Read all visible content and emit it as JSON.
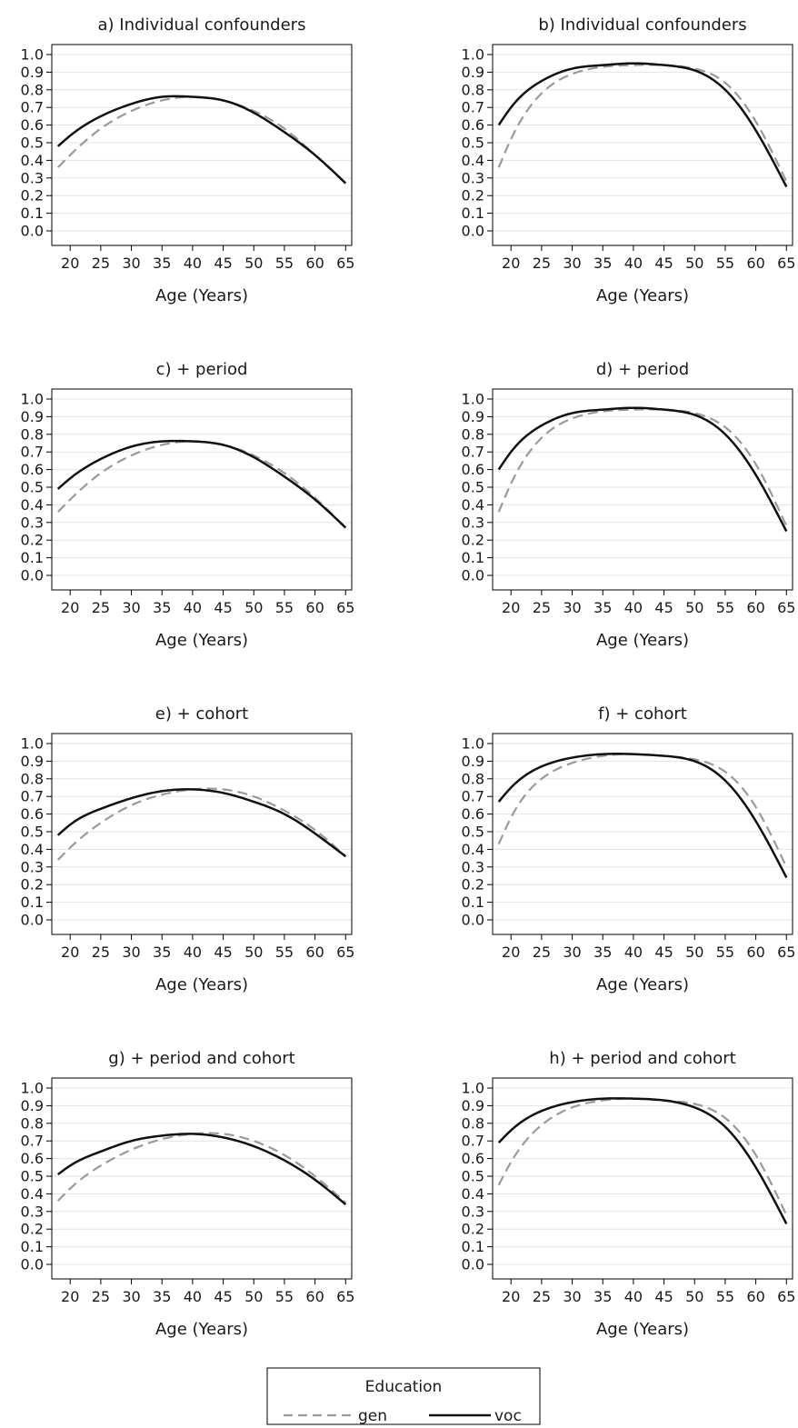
{
  "chart_data": [
    {
      "type": "line",
      "title": "a) Individual confounders",
      "xlabel": "Age (Years)",
      "ylabel": "",
      "xlim": [
        17,
        66
      ],
      "ylim": [
        0.0,
        1.0
      ],
      "xticks": [
        "20",
        "25",
        "30",
        "35",
        "40",
        "45",
        "50",
        "55",
        "60",
        "65"
      ],
      "yticks": [
        "0.0",
        "0.1",
        "0.2",
        "0.3",
        "0.4",
        "0.5",
        "0.6",
        "0.7",
        "0.8",
        "0.9",
        "1.0"
      ],
      "grid": true,
      "x": [
        18,
        20,
        25,
        30,
        35,
        40,
        45,
        50,
        55,
        60,
        65
      ],
      "series": [
        {
          "name": "gen",
          "values": [
            0.36,
            0.43,
            0.58,
            0.68,
            0.74,
            0.76,
            0.74,
            0.68,
            0.58,
            0.43,
            0.27
          ]
        },
        {
          "name": "voc",
          "values": [
            0.48,
            0.54,
            0.65,
            0.72,
            0.76,
            0.76,
            0.74,
            0.67,
            0.56,
            0.43,
            0.27
          ]
        }
      ]
    },
    {
      "type": "line",
      "title": "b) Individual confounders",
      "xlabel": "Age (Years)",
      "ylabel": "",
      "xlim": [
        17,
        66
      ],
      "ylim": [
        0.0,
        1.0
      ],
      "xticks": [
        "20",
        "25",
        "30",
        "35",
        "40",
        "45",
        "50",
        "55",
        "60",
        "65"
      ],
      "yticks": [
        "0.0",
        "0.1",
        "0.2",
        "0.3",
        "0.4",
        "0.5",
        "0.6",
        "0.7",
        "0.8",
        "0.9",
        "1.0"
      ],
      "grid": true,
      "x": [
        18,
        20,
        25,
        30,
        35,
        40,
        45,
        50,
        55,
        60,
        65
      ],
      "series": [
        {
          "name": "gen",
          "values": [
            0.36,
            0.52,
            0.78,
            0.89,
            0.93,
            0.94,
            0.94,
            0.92,
            0.84,
            0.62,
            0.28
          ]
        },
        {
          "name": "voc",
          "values": [
            0.6,
            0.7,
            0.85,
            0.92,
            0.94,
            0.95,
            0.94,
            0.91,
            0.8,
            0.57,
            0.25
          ]
        }
      ]
    },
    {
      "type": "line",
      "title": "c) + period",
      "xlabel": "Age (Years)",
      "ylabel": "",
      "xlim": [
        17,
        66
      ],
      "ylim": [
        0.0,
        1.0
      ],
      "xticks": [
        "20",
        "25",
        "30",
        "35",
        "40",
        "45",
        "50",
        "55",
        "60",
        "65"
      ],
      "yticks": [
        "0.0",
        "0.1",
        "0.2",
        "0.3",
        "0.4",
        "0.5",
        "0.6",
        "0.7",
        "0.8",
        "0.9",
        "1.0"
      ],
      "grid": true,
      "x": [
        18,
        20,
        25,
        30,
        35,
        40,
        45,
        50,
        55,
        60,
        65
      ],
      "series": [
        {
          "name": "gen",
          "values": [
            0.36,
            0.43,
            0.58,
            0.68,
            0.74,
            0.76,
            0.74,
            0.68,
            0.58,
            0.44,
            0.27
          ]
        },
        {
          "name": "voc",
          "values": [
            0.49,
            0.55,
            0.66,
            0.73,
            0.76,
            0.76,
            0.74,
            0.67,
            0.56,
            0.43,
            0.27
          ]
        }
      ]
    },
    {
      "type": "line",
      "title": "d) + period",
      "xlabel": "Age (Years)",
      "ylabel": "",
      "xlim": [
        17,
        66
      ],
      "ylim": [
        0.0,
        1.0
      ],
      "xticks": [
        "20",
        "25",
        "30",
        "35",
        "40",
        "45",
        "50",
        "55",
        "60",
        "65"
      ],
      "yticks": [
        "0.0",
        "0.1",
        "0.2",
        "0.3",
        "0.4",
        "0.5",
        "0.6",
        "0.7",
        "0.8",
        "0.9",
        "1.0"
      ],
      "grid": true,
      "x": [
        18,
        20,
        25,
        30,
        35,
        40,
        45,
        50,
        55,
        60,
        65
      ],
      "series": [
        {
          "name": "gen",
          "values": [
            0.36,
            0.52,
            0.78,
            0.89,
            0.93,
            0.94,
            0.94,
            0.92,
            0.84,
            0.63,
            0.28
          ]
        },
        {
          "name": "voc",
          "values": [
            0.6,
            0.7,
            0.85,
            0.92,
            0.94,
            0.95,
            0.94,
            0.91,
            0.8,
            0.57,
            0.25
          ]
        }
      ]
    },
    {
      "type": "line",
      "title": "e) + cohort",
      "xlabel": "Age (Years)",
      "ylabel": "",
      "xlim": [
        17,
        66
      ],
      "ylim": [
        0.0,
        1.0
      ],
      "xticks": [
        "20",
        "25",
        "30",
        "35",
        "40",
        "45",
        "50",
        "55",
        "60",
        "65"
      ],
      "yticks": [
        "0.0",
        "0.1",
        "0.2",
        "0.3",
        "0.4",
        "0.5",
        "0.6",
        "0.7",
        "0.8",
        "0.9",
        "1.0"
      ],
      "grid": true,
      "x": [
        18,
        20,
        25,
        30,
        35,
        40,
        45,
        50,
        55,
        60,
        65
      ],
      "series": [
        {
          "name": "gen",
          "values": [
            0.34,
            0.41,
            0.55,
            0.65,
            0.71,
            0.74,
            0.74,
            0.7,
            0.62,
            0.51,
            0.36
          ]
        },
        {
          "name": "voc",
          "values": [
            0.48,
            0.54,
            0.63,
            0.69,
            0.73,
            0.74,
            0.72,
            0.67,
            0.6,
            0.49,
            0.36
          ]
        }
      ]
    },
    {
      "type": "line",
      "title": "f) + cohort",
      "xlabel": "Age (Years)",
      "ylabel": "",
      "xlim": [
        17,
        66
      ],
      "ylim": [
        0.0,
        1.0
      ],
      "xticks": [
        "20",
        "25",
        "30",
        "35",
        "40",
        "45",
        "50",
        "55",
        "60",
        "65"
      ],
      "yticks": [
        "0.0",
        "0.1",
        "0.2",
        "0.3",
        "0.4",
        "0.5",
        "0.6",
        "0.7",
        "0.8",
        "0.9",
        "1.0"
      ],
      "grid": true,
      "x": [
        18,
        20,
        25,
        30,
        35,
        40,
        45,
        50,
        55,
        60,
        65
      ],
      "series": [
        {
          "name": "gen",
          "values": [
            0.43,
            0.58,
            0.8,
            0.89,
            0.93,
            0.94,
            0.93,
            0.91,
            0.84,
            0.64,
            0.3
          ]
        },
        {
          "name": "voc",
          "values": [
            0.67,
            0.75,
            0.87,
            0.92,
            0.94,
            0.94,
            0.93,
            0.9,
            0.79,
            0.56,
            0.24
          ]
        }
      ]
    },
    {
      "type": "line",
      "title": "g) + period and cohort",
      "xlabel": "Age (Years)",
      "ylabel": "",
      "xlim": [
        17,
        66
      ],
      "ylim": [
        0.0,
        1.0
      ],
      "xticks": [
        "20",
        "25",
        "30",
        "35",
        "40",
        "45",
        "50",
        "55",
        "60",
        "65"
      ],
      "yticks": [
        "0.0",
        "0.1",
        "0.2",
        "0.3",
        "0.4",
        "0.5",
        "0.6",
        "0.7",
        "0.8",
        "0.9",
        "1.0"
      ],
      "grid": true,
      "x": [
        18,
        20,
        25,
        30,
        35,
        40,
        45,
        50,
        55,
        60,
        65
      ],
      "series": [
        {
          "name": "gen",
          "values": [
            0.36,
            0.43,
            0.56,
            0.65,
            0.71,
            0.74,
            0.74,
            0.7,
            0.62,
            0.5,
            0.35
          ]
        },
        {
          "name": "voc",
          "values": [
            0.51,
            0.56,
            0.64,
            0.7,
            0.73,
            0.74,
            0.72,
            0.67,
            0.59,
            0.48,
            0.34
          ]
        }
      ]
    },
    {
      "type": "line",
      "title": "h) + period and cohort",
      "xlabel": "Age (Years)",
      "ylabel": "",
      "xlim": [
        17,
        66
      ],
      "ylim": [
        0.0,
        1.0
      ],
      "xticks": [
        "20",
        "25",
        "30",
        "35",
        "40",
        "45",
        "50",
        "55",
        "60",
        "65"
      ],
      "yticks": [
        "0.0",
        "0.1",
        "0.2",
        "0.3",
        "0.4",
        "0.5",
        "0.6",
        "0.7",
        "0.8",
        "0.9",
        "1.0"
      ],
      "grid": true,
      "x": [
        18,
        20,
        25,
        30,
        35,
        40,
        45,
        50,
        55,
        60,
        65
      ],
      "series": [
        {
          "name": "gen",
          "values": [
            0.45,
            0.58,
            0.79,
            0.89,
            0.93,
            0.94,
            0.93,
            0.91,
            0.83,
            0.62,
            0.28
          ]
        },
        {
          "name": "voc",
          "values": [
            0.69,
            0.76,
            0.87,
            0.92,
            0.94,
            0.94,
            0.93,
            0.89,
            0.78,
            0.55,
            0.23
          ]
        }
      ]
    }
  ],
  "legend": {
    "title": "Education",
    "items": [
      {
        "label": "gen",
        "style": "dashed",
        "color": "#9a9a9a"
      },
      {
        "label": "voc",
        "style": "solid",
        "color": "#111111"
      }
    ]
  },
  "colors": {
    "gen": "#9a9a9a",
    "voc": "#111111",
    "grid": "#e3e3e3",
    "axis": "#000000"
  }
}
